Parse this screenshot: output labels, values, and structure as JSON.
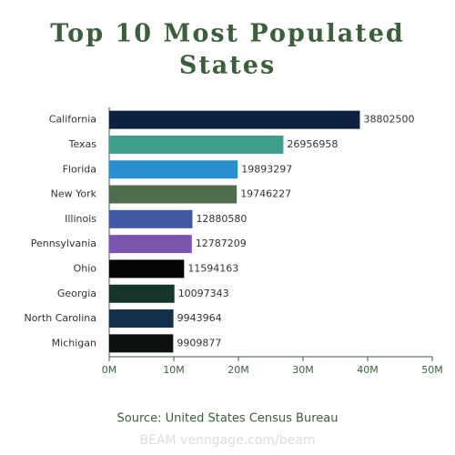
{
  "chart_data": {
    "type": "hbar",
    "title": [
      "Top 10 Most Populated",
      "States"
    ],
    "categories": [
      "California",
      "Texas",
      "Florida",
      "New York",
      "Illinois",
      "Pennsylvania",
      "Ohio",
      "Georgia",
      "North Carolina",
      "Michigan"
    ],
    "values": [
      38802500,
      26956958,
      19893297,
      19746227,
      12880580,
      12787209,
      11594163,
      10097343,
      9943964,
      9909877
    ],
    "colors": [
      "#0d2240",
      "#3d9e8c",
      "#2a8fcf",
      "#4e6e4e",
      "#3f5aa0",
      "#7a55b0",
      "#050505",
      "#173528",
      "#12304a",
      "#0c120f"
    ],
    "xlim": [
      0,
      50000000
    ],
    "xticks": [
      {
        "value": 0,
        "label": "0M"
      },
      {
        "value": 10000000,
        "label": "10M"
      },
      {
        "value": 20000000,
        "label": "20M"
      },
      {
        "value": 30000000,
        "label": "30M"
      },
      {
        "value": 40000000,
        "label": "40M"
      },
      {
        "value": 50000000,
        "label": "50M"
      }
    ],
    "source": "Source: United States Census Bureau",
    "watermark": "BEAM venngage.com/beam"
  }
}
